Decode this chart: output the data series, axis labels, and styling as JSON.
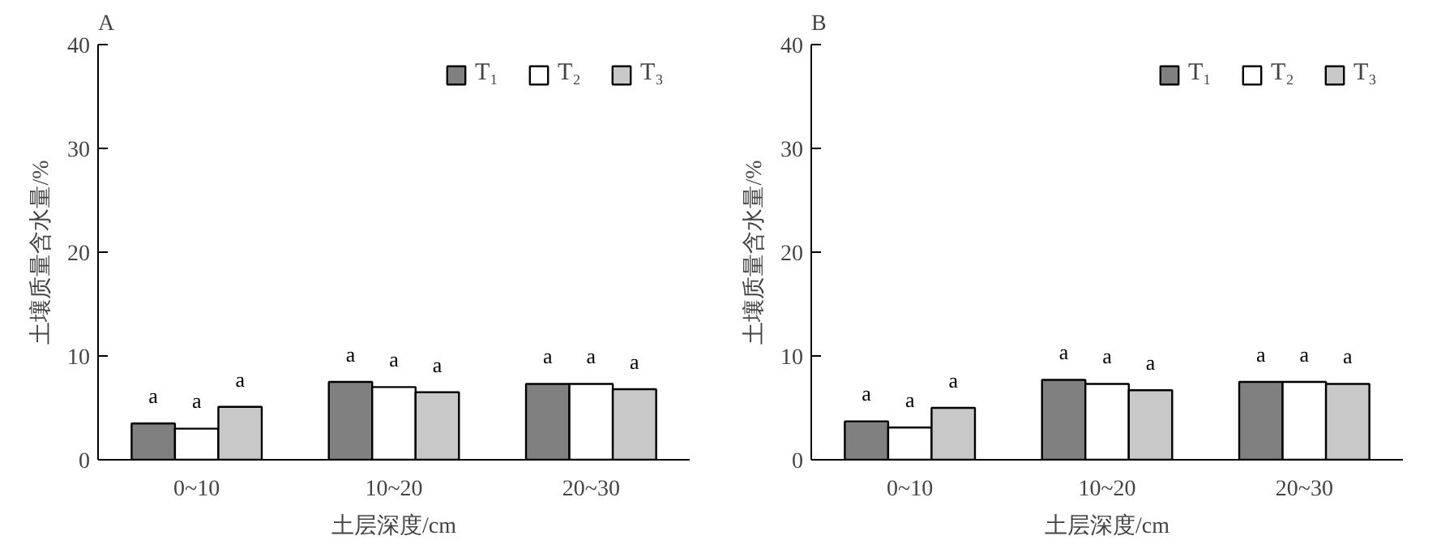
{
  "chart_data": [
    {
      "type": "bar",
      "title": "A",
      "xlabel": "土层深度/cm",
      "ylabel": "土壤质量含水量/%",
      "categories": [
        "0~10",
        "10~20",
        "20~30"
      ],
      "ylim": [
        0,
        40
      ],
      "yticks": [
        0,
        10,
        20,
        30,
        40
      ],
      "grid": false,
      "legend": "top right",
      "series": [
        {
          "name": "T₁",
          "color": "#808080",
          "values": [
            3.5,
            7.5,
            7.3
          ],
          "value_labels": [
            "a",
            "a",
            "a"
          ]
        },
        {
          "name": "T₂",
          "color": "#ffffff",
          "values": [
            3.0,
            7.0,
            7.3
          ],
          "value_labels": [
            "a",
            "a",
            "a"
          ]
        },
        {
          "name": "T₃",
          "color": "#c8c8c8",
          "values": [
            5.1,
            6.5,
            6.8
          ],
          "value_labels": [
            "a",
            "a",
            "a"
          ]
        }
      ]
    },
    {
      "type": "bar",
      "title": "B",
      "xlabel": "土层深度/cm",
      "ylabel": "土壤质量含水量/%",
      "categories": [
        "0~10",
        "10~20",
        "20~30"
      ],
      "ylim": [
        0,
        40
      ],
      "yticks": [
        0,
        10,
        20,
        30,
        40
      ],
      "grid": false,
      "legend": "top right",
      "series": [
        {
          "name": "T₁",
          "color": "#808080",
          "values": [
            3.7,
            7.7,
            7.5
          ],
          "value_labels": [
            "a",
            "a",
            "a"
          ]
        },
        {
          "name": "T₂",
          "color": "#ffffff",
          "values": [
            3.1,
            7.3,
            7.5
          ],
          "value_labels": [
            "a",
            "a",
            "a"
          ]
        },
        {
          "name": "T₃",
          "color": "#c8c8c8",
          "values": [
            5.0,
            6.7,
            7.3
          ],
          "value_labels": [
            "a",
            "a",
            "a"
          ]
        }
      ]
    }
  ]
}
